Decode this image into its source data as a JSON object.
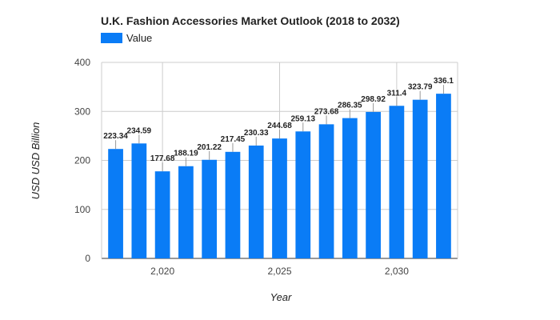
{
  "chart_data": {
    "type": "bar",
    "title": "U.K.  Fashion Accessories Market Outlook (2018 to 2032)",
    "xlabel": "Year",
    "ylabel": "USD USD Billion",
    "legend": {
      "position": "top-left",
      "entries": [
        "Value"
      ]
    },
    "color": "#0a7cf6",
    "grid": true,
    "ylim": [
      0,
      400
    ],
    "yticks": [
      0,
      100,
      200,
      300,
      400
    ],
    "xlim": [
      2017.4,
      2032.6
    ],
    "xticks": [
      2020,
      2025,
      2030
    ],
    "xtick_labels": [
      "2,020",
      "2,025",
      "2,030"
    ],
    "series": [
      {
        "name": "Value",
        "x": [
          2018,
          2019,
          2020,
          2021,
          2022,
          2023,
          2024,
          2025,
          2026,
          2027,
          2028,
          2029,
          2030,
          2031,
          2032
        ],
        "values": [
          223.34,
          234.59,
          177.68,
          188.19,
          201.22,
          217.45,
          230.33,
          244.68,
          259.13,
          273.68,
          286.35,
          298.92,
          311.4,
          323.79,
          336.1
        ],
        "labels": [
          "223.34",
          "234.59",
          "177.68",
          "188.19",
          "201.22",
          "217.45",
          "230.33",
          "244.68",
          "259.13",
          "273.68",
          "286.35",
          "298.92",
          "311.4",
          "323.79",
          "336.1"
        ]
      }
    ]
  }
}
